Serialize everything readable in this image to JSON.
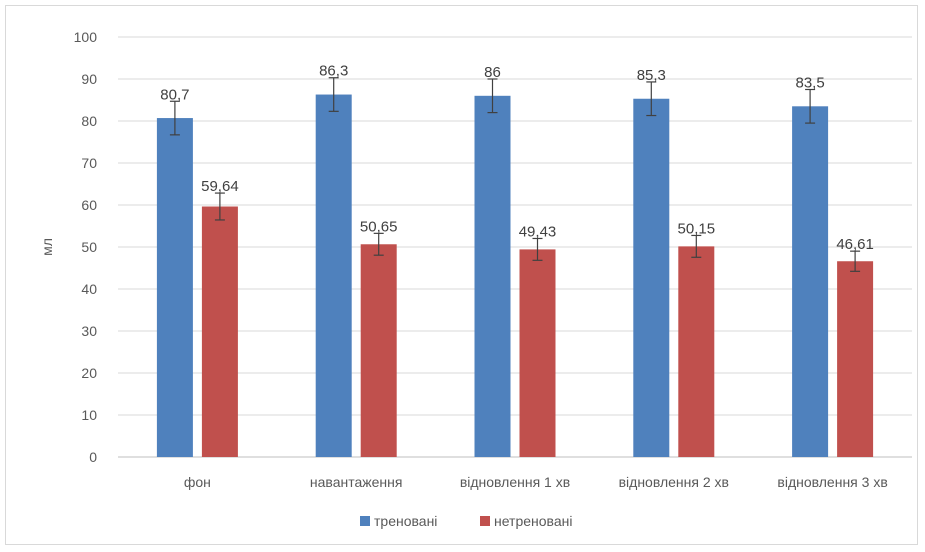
{
  "chart_data": {
    "type": "bar",
    "title": "",
    "xlabel": "",
    "ylabel": "мл",
    "ylim": [
      0,
      100
    ],
    "yticks": [
      0,
      10,
      20,
      30,
      40,
      50,
      60,
      70,
      80,
      90,
      100
    ],
    "grid": true,
    "legend_position": "bottom",
    "error_bars": true,
    "categories": [
      "фон",
      "навантаження",
      "відновлення 1 хв",
      "відновлення 2 хв",
      "відновлення 3 хв"
    ],
    "series": [
      {
        "name": "треновані",
        "color": "#4f81bd",
        "values": [
          80.7,
          86.3,
          86,
          85.3,
          83.5
        ],
        "labels": [
          "80,7",
          "86,3",
          "86",
          "85,3",
          "83,5"
        ],
        "errors": [
          4,
          4,
          4,
          4,
          4
        ]
      },
      {
        "name": "нетреновані",
        "color": "#c0504d",
        "values": [
          59.64,
          50.65,
          49.43,
          50.15,
          46.61
        ],
        "labels": [
          "59,64",
          "50,65",
          "49,43",
          "50,15",
          "46,61"
        ],
        "errors": [
          3.2,
          2.6,
          2.6,
          2.6,
          2.4
        ]
      }
    ]
  }
}
